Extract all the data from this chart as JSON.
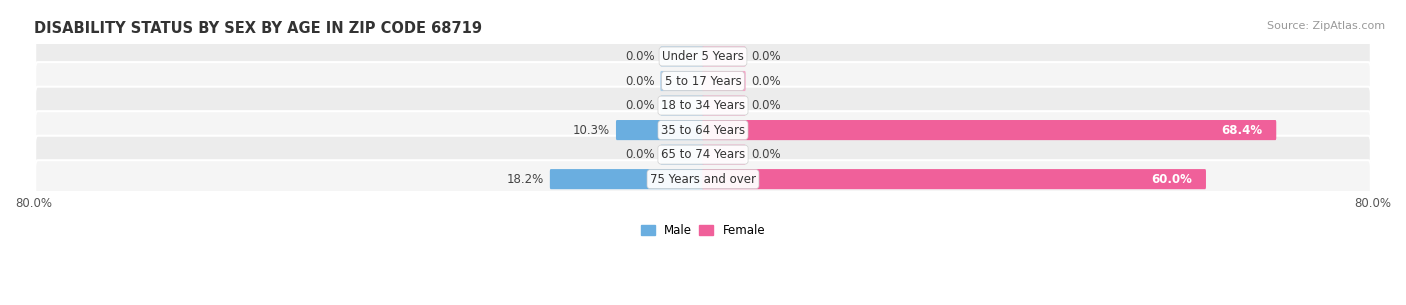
{
  "title": "DISABILITY STATUS BY SEX BY AGE IN ZIP CODE 68719",
  "source": "Source: ZipAtlas.com",
  "categories": [
    "Under 5 Years",
    "5 to 17 Years",
    "18 to 34 Years",
    "35 to 64 Years",
    "65 to 74 Years",
    "75 Years and over"
  ],
  "male_values": [
    0.0,
    0.0,
    0.0,
    10.3,
    0.0,
    18.2
  ],
  "female_values": [
    0.0,
    0.0,
    0.0,
    68.4,
    0.0,
    60.0
  ],
  "male_color_full": "#6aaee0",
  "male_color_stub": "#aacde8",
  "female_color_full": "#f0609a",
  "female_color_stub": "#f4a8c8",
  "row_bg_even": "#ececec",
  "row_bg_odd": "#f5f5f5",
  "xlim": 80.0,
  "stub_val": 5.0,
  "bar_height": 0.62,
  "title_fontsize": 10.5,
  "label_fontsize": 8.5,
  "tick_fontsize": 8.5,
  "source_fontsize": 8,
  "value_fontsize": 8.5
}
